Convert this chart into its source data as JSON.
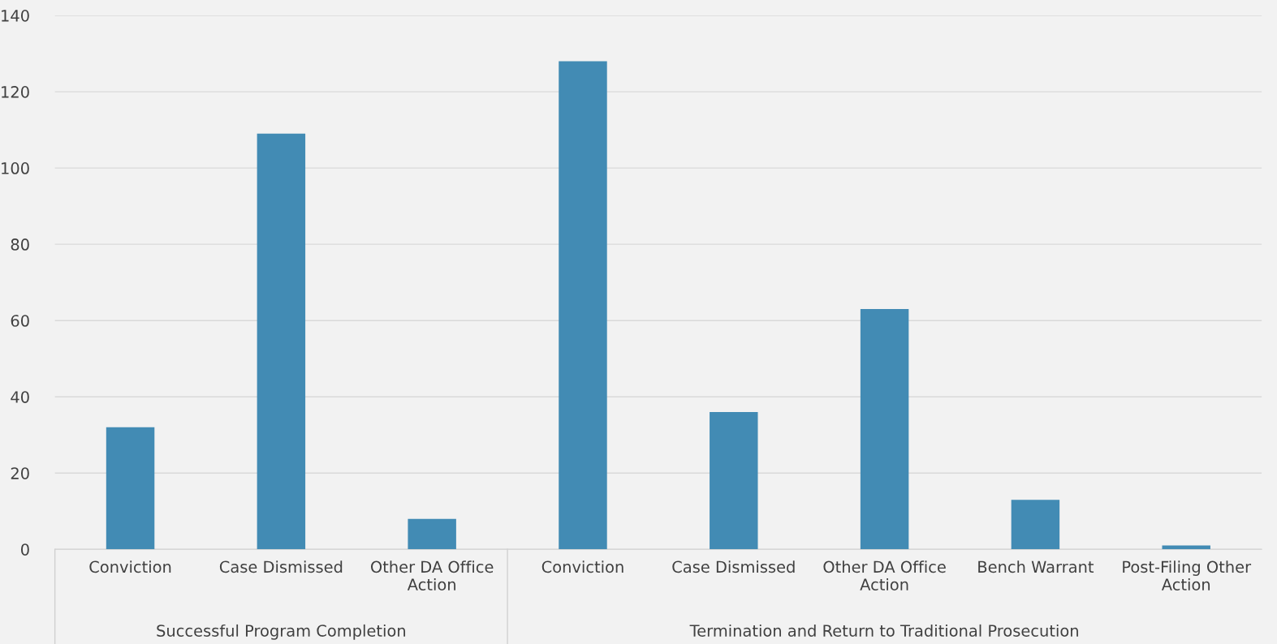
{
  "chart_data": {
    "type": "bar",
    "categories": [
      "Conviction",
      "Case Dismissed",
      "Other DA Office\nAction",
      "Conviction",
      "Case Dismissed",
      "Other DA Office\nAction",
      "Bench Warrant",
      "Post-Filing Other\nAction"
    ],
    "values": [
      32,
      109,
      8,
      128,
      36,
      63,
      13,
      1
    ],
    "color": "#428bb4",
    "ylim": [
      0,
      140
    ],
    "yticks": [
      0,
      20,
      40,
      60,
      80,
      100,
      120,
      140
    ],
    "grid": "y",
    "annotations": [
      "Successful Program Completion",
      "Termination and Return to Traditional Prosecution"
    ]
  }
}
